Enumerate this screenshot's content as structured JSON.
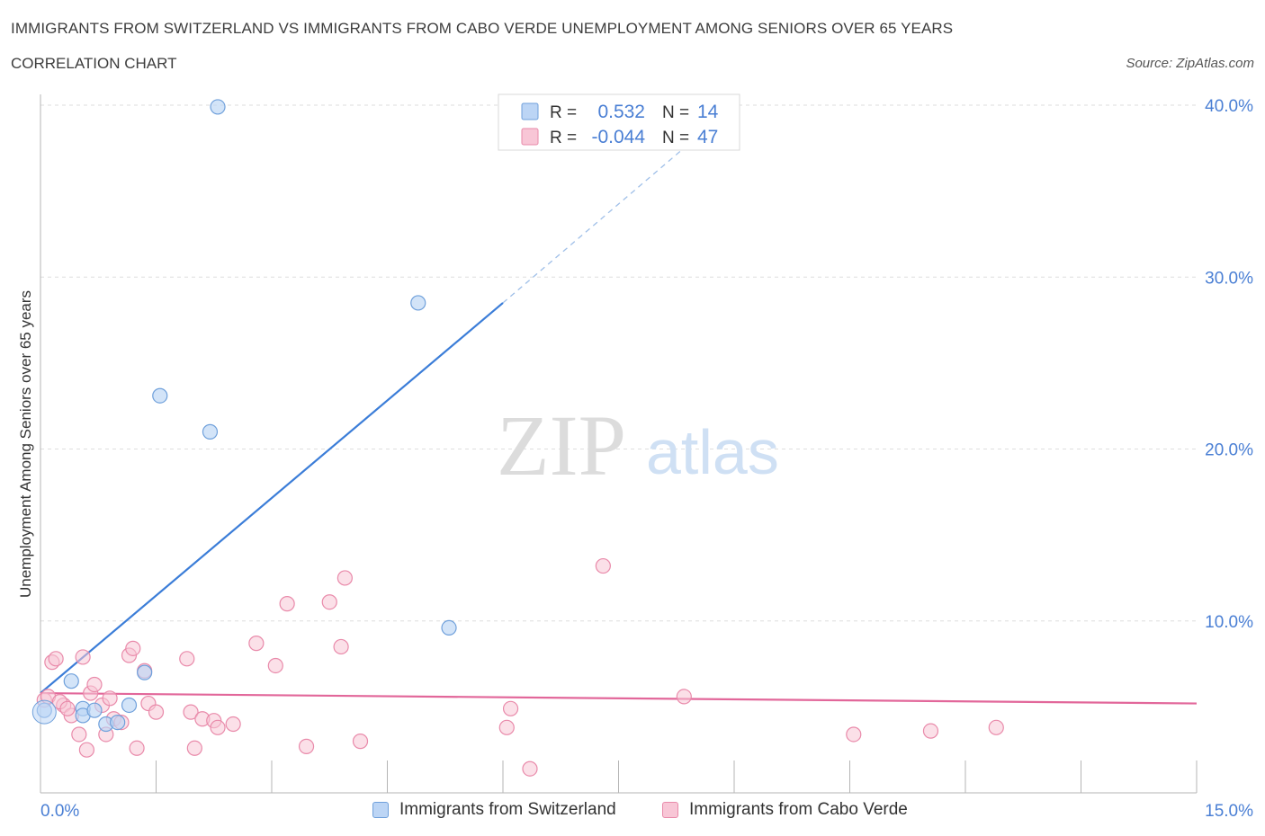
{
  "header": {
    "title": "IMMIGRANTS FROM SWITZERLAND VS IMMIGRANTS FROM CABO VERDE UNEMPLOYMENT AMONG SENIORS OVER 65 YEARS",
    "subtitle": "CORRELATION CHART",
    "source": "Source: ZipAtlas.com"
  },
  "watermark": {
    "part1": "ZIP",
    "part2": "atlas"
  },
  "colors": {
    "blue_fill": "#bcd5f5",
    "blue_stroke": "#6fa0db",
    "blue_line": "#3b7dd8",
    "pink_fill": "#f8c6d6",
    "pink_stroke": "#e98aaa",
    "pink_line": "#e2679a",
    "tick_label": "#4a7fd4"
  },
  "stats_legend": [
    {
      "r_label": "R =",
      "r_value": "0.532",
      "n_label": "N =",
      "n_value": "14",
      "series": "switzerland"
    },
    {
      "r_label": "R =",
      "r_value": "-0.044",
      "n_label": "N =",
      "n_value": "47",
      "series": "caboverde"
    }
  ],
  "bottom_legend": [
    {
      "label": "Immigrants from Switzerland",
      "series": "switzerland"
    },
    {
      "label": "Immigrants from Cabo Verde",
      "series": "caboverde"
    }
  ],
  "chart_data": {
    "type": "scatter",
    "title": "IMMIGRANTS FROM SWITZERLAND VS IMMIGRANTS FROM CABO VERDE UNEMPLOYMENT AMONG SENIORS OVER 65 YEARS",
    "xlabel": "",
    "ylabel": "Unemployment Among Seniors over 65 years",
    "xlim": [
      0,
      15
    ],
    "ylim": [
      0,
      40
    ],
    "x_tick_labels": [
      "0.0%",
      "15.0%"
    ],
    "y_ticks": [
      10,
      20,
      30,
      40
    ],
    "y_tick_labels": [
      "10.0%",
      "20.0%",
      "30.0%",
      "40.0%"
    ],
    "grid": true,
    "legend_position": "top-center",
    "series": [
      {
        "name": "Immigrants from Switzerland",
        "key": "switzerland",
        "points": [
          [
            0.05,
            4.8
          ],
          [
            0.55,
            4.9
          ],
          [
            0.4,
            6.5
          ],
          [
            0.55,
            4.5
          ],
          [
            0.7,
            4.8
          ],
          [
            0.85,
            4.0
          ],
          [
            1.0,
            4.1
          ],
          [
            1.15,
            5.1
          ],
          [
            1.35,
            7.0
          ],
          [
            1.55,
            23.1
          ],
          [
            2.2,
            21.0
          ],
          [
            2.3,
            39.9
          ],
          [
            4.9,
            28.5
          ],
          [
            5.3,
            9.6
          ]
        ],
        "trend": {
          "x0": 0.0,
          "y0": 5.8,
          "x1": 6.0,
          "y1": 28.5,
          "dash_x1": 9.0,
          "dash_y1": 40.0
        }
      },
      {
        "name": "Immigrants from Cabo Verde",
        "key": "caboverde",
        "points": [
          [
            0.05,
            5.4
          ],
          [
            0.15,
            7.6
          ],
          [
            0.2,
            7.8
          ],
          [
            0.3,
            5.1
          ],
          [
            0.4,
            4.5
          ],
          [
            0.5,
            3.4
          ],
          [
            0.55,
            7.9
          ],
          [
            0.6,
            2.5
          ],
          [
            0.65,
            5.8
          ],
          [
            0.7,
            6.3
          ],
          [
            0.8,
            5.1
          ],
          [
            0.85,
            3.4
          ],
          [
            0.9,
            5.5
          ],
          [
            0.95,
            4.3
          ],
          [
            1.05,
            4.1
          ],
          [
            1.15,
            8.0
          ],
          [
            1.2,
            8.4
          ],
          [
            1.25,
            2.6
          ],
          [
            1.35,
            7.1
          ],
          [
            1.4,
            5.2
          ],
          [
            1.5,
            4.7
          ],
          [
            1.9,
            7.8
          ],
          [
            1.95,
            4.7
          ],
          [
            2.0,
            2.6
          ],
          [
            2.1,
            4.3
          ],
          [
            2.25,
            4.2
          ],
          [
            2.3,
            3.8
          ],
          [
            2.5,
            4.0
          ],
          [
            2.8,
            8.7
          ],
          [
            3.05,
            7.4
          ],
          [
            3.2,
            11.0
          ],
          [
            3.45,
            2.7
          ],
          [
            3.75,
            11.1
          ],
          [
            3.9,
            8.5
          ],
          [
            3.95,
            12.5
          ],
          [
            4.15,
            3.0
          ],
          [
            6.05,
            3.8
          ],
          [
            6.1,
            4.9
          ],
          [
            6.35,
            1.4
          ],
          [
            7.3,
            13.2
          ],
          [
            8.35,
            5.6
          ],
          [
            10.55,
            3.4
          ],
          [
            11.55,
            3.6
          ],
          [
            12.4,
            3.8
          ],
          [
            0.1,
            5.6
          ],
          [
            0.25,
            5.3
          ],
          [
            0.35,
            4.9
          ]
        ],
        "trend": {
          "x0": 0.0,
          "y0": 5.8,
          "x1": 15.0,
          "y1": 5.2
        }
      }
    ]
  }
}
